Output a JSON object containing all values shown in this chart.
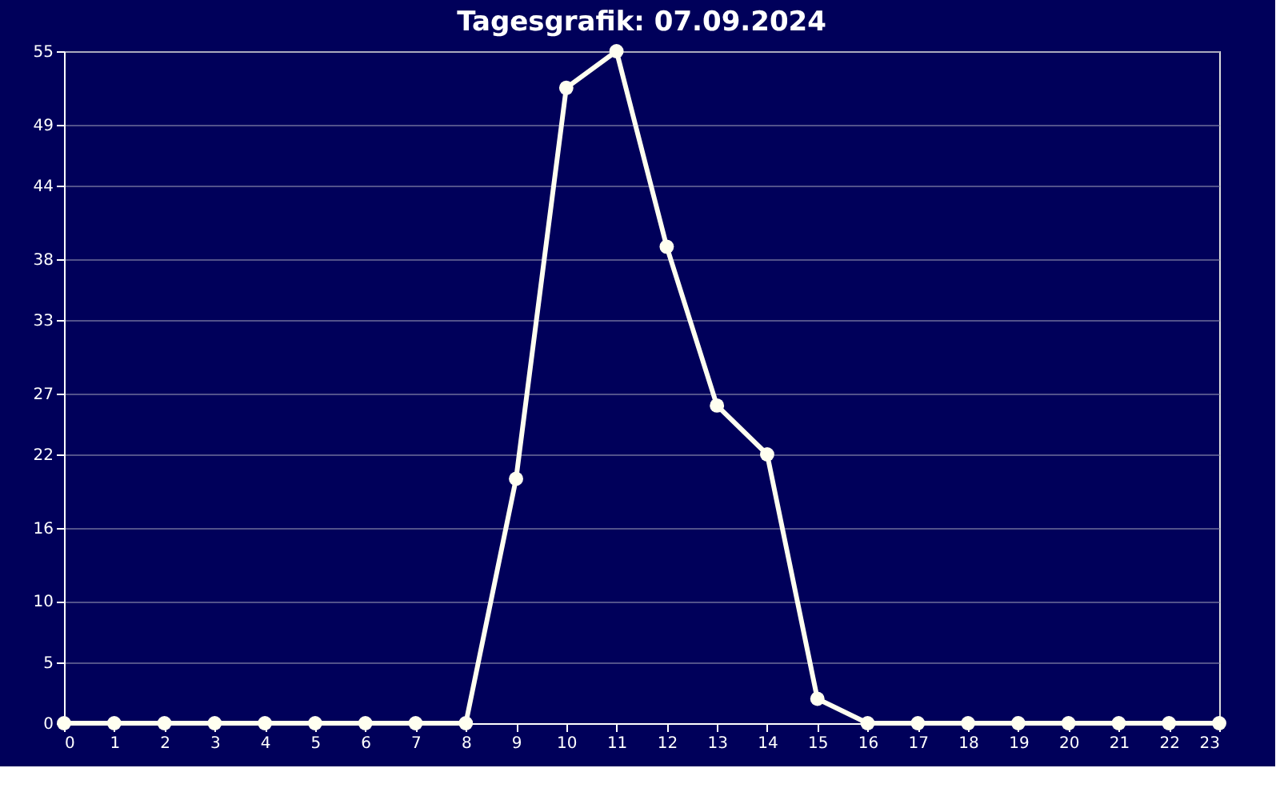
{
  "chart_data": {
    "type": "line",
    "title": "Tagesgrafik: 07.09.2024",
    "x": [
      0,
      1,
      2,
      3,
      4,
      5,
      6,
      7,
      8,
      9,
      10,
      11,
      12,
      13,
      14,
      15,
      16,
      17,
      18,
      19,
      20,
      21,
      22,
      23
    ],
    "series": [
      {
        "color": "#fffff0",
        "values": [
          0,
          0,
          0,
          0,
          0,
          0,
          0,
          0,
          0,
          20,
          52,
          55,
          39,
          26,
          22,
          2,
          0,
          0,
          0,
          0,
          0,
          0,
          0,
          0
        ]
      }
    ],
    "xlim": [
      0,
      23
    ],
    "xticks": [
      0,
      1,
      2,
      3,
      4,
      5,
      6,
      7,
      8,
      9,
      10,
      11,
      12,
      13,
      14,
      15,
      16,
      17,
      18,
      19,
      20,
      21,
      22,
      23
    ],
    "ylim": [
      0,
      55
    ],
    "yticks": [
      0,
      5,
      10,
      16,
      22,
      27,
      33,
      38,
      44,
      49,
      55
    ],
    "grid": "y",
    "marker": "circle",
    "line_style": "solid"
  }
}
